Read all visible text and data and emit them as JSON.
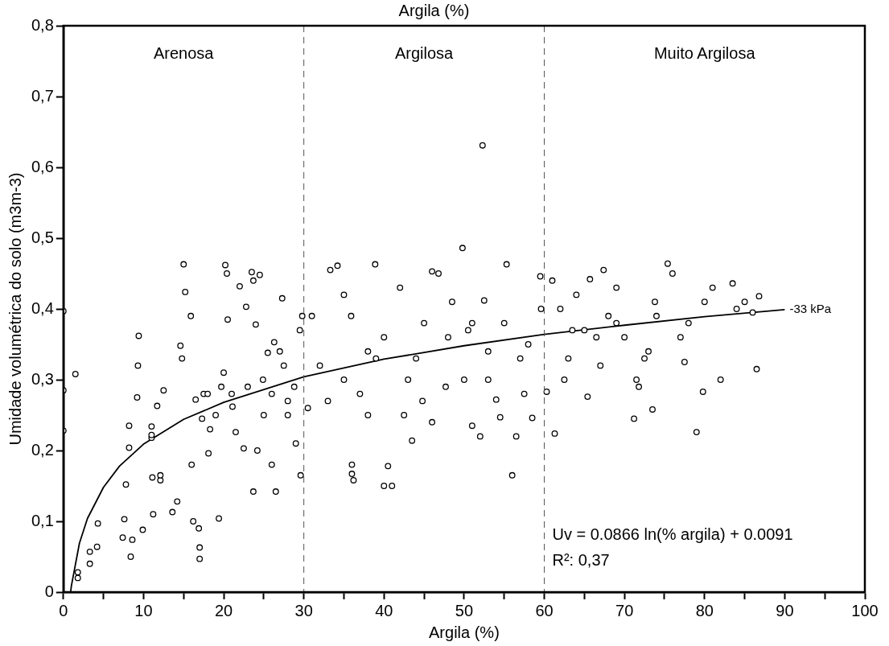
{
  "chart_data": {
    "type": "scatter",
    "title": "Argila (%)",
    "xlabel": "Argila (%)",
    "ylabel": "Umidade volumétrica do solo (m3m-3)",
    "xlim": [
      0,
      100
    ],
    "ylim": [
      0,
      0.8
    ],
    "xticks": [
      0,
      {
        "value": 5,
        "label": null
      },
      10,
      {
        "value": 15,
        "label": null
      },
      20,
      {
        "value": 25,
        "label": null
      },
      30,
      {
        "value": 35,
        "label": null
      },
      40,
      {
        "value": 45,
        "label": null
      },
      50,
      {
        "value": 55,
        "label": null
      },
      60,
      {
        "value": 65,
        "label": null
      },
      70,
      {
        "value": 75,
        "label": null
      },
      80,
      {
        "value": 85,
        "label": null
      },
      90,
      {
        "value": 95,
        "label": null
      },
      100
    ],
    "yticks": [
      0,
      {
        "value": 0.1,
        "label": "0,1"
      },
      {
        "value": 0.2,
        "label": "0,2"
      },
      {
        "value": 0.3,
        "label": "0,3"
      },
      {
        "value": 0.4,
        "label": "0,4"
      },
      {
        "value": 0.5,
        "label": "0,5"
      },
      {
        "value": 0.6,
        "label": "0,6"
      },
      {
        "value": 0.7,
        "label": "0,7"
      },
      {
        "value": 0.8,
        "label": "0,8"
      }
    ],
    "grid": false,
    "legend": false,
    "marker": "circle",
    "ref_lines": [
      {
        "axis": "x",
        "value": 30,
        "color": "#555555",
        "line_style": "dashed"
      },
      {
        "axis": "x",
        "value": 60,
        "color": "#555555",
        "line_style": "dashed"
      }
    ],
    "annotations": [
      "Arenosa",
      "Argilosa",
      "Muito Argilosa",
      "Uv = 0.0866 ln(% argila) + 0.0091",
      "R²: 0,37"
    ],
    "series": [
      {
        "type": "scatter",
        "color": "#000000",
        "x": [
          0,
          0,
          0,
          1.5,
          1.8,
          1.8,
          3.3,
          3.3,
          4.2,
          4.3,
          7.4,
          7.6,
          8.4,
          8.6,
          9.4,
          9.3,
          9.2,
          8.2,
          8.2,
          7.8,
          9.9,
          11,
          11,
          11,
          11.1,
          11.2,
          11.7,
          12.1,
          12.1,
          13.6,
          14.2,
          14.6,
          15,
          15.2,
          15.9,
          14.8,
          16,
          16.2,
          16.9,
          17,
          17,
          16.5,
          17.5,
          17.3,
          18.1,
          18.3,
          19.4,
          19.7,
          20.2,
          20.4,
          20.5,
          21.1,
          21.5,
          22,
          22.8,
          23.5,
          23.7,
          24,
          24.5,
          23,
          22.5,
          24.2,
          23.7,
          24.9,
          25.5,
          26.3,
          26,
          26.5,
          27.3,
          27,
          27.5,
          28,
          28.8,
          29,
          29.5,
          29.8,
          29.6,
          18,
          19,
          20,
          21,
          25,
          26,
          28,
          12.5,
          31,
          30.5,
          32,
          33.3,
          34.2,
          35,
          35.9,
          36,
          36.2,
          36,
          38.9,
          37,
          38,
          38,
          39,
          40,
          40.5,
          41,
          42,
          42.5,
          43,
          43.5,
          44.8,
          45,
          46,
          46.8,
          47.7,
          48,
          48.5,
          49.8,
          50,
          50.5,
          51,
          51,
          52,
          52.3,
          52.5,
          53,
          54,
          54.5,
          55.3,
          56,
          56.5,
          57.5,
          58,
          59.5,
          59.6,
          58.5,
          33,
          35,
          44,
          46,
          53,
          55,
          57,
          40,
          60.3,
          61,
          61.3,
          62,
          62.5,
          63,
          64,
          65,
          65.4,
          65.7,
          66.5,
          67.4,
          67,
          68,
          69,
          70,
          71.2,
          71.5,
          71.8,
          72.5,
          73,
          73.5,
          73.8,
          74,
          75.4,
          76,
          77.5,
          78,
          79,
          79.8,
          80,
          81,
          82,
          83.5,
          85,
          86,
          86.5,
          86.8,
          77,
          69,
          63.5,
          84
        ],
        "values": [
          0.397,
          0.285,
          0.228,
          0.308,
          0.028,
          0.02,
          0.057,
          0.04,
          0.064,
          0.097,
          0.077,
          0.103,
          0.05,
          0.074,
          0.362,
          0.32,
          0.275,
          0.235,
          0.204,
          0.152,
          0.088,
          0.218,
          0.234,
          0.222,
          0.162,
          0.11,
          0.263,
          0.158,
          0.165,
          0.113,
          0.128,
          0.348,
          0.463,
          0.424,
          0.39,
          0.33,
          0.18,
          0.1,
          0.09,
          0.063,
          0.047,
          0.272,
          0.28,
          0.245,
          0.196,
          0.23,
          0.104,
          0.29,
          0.462,
          0.45,
          0.385,
          0.262,
          0.226,
          0.432,
          0.403,
          0.452,
          0.44,
          0.378,
          0.448,
          0.29,
          0.203,
          0.2,
          0.142,
          0.3,
          0.338,
          0.353,
          0.18,
          0.142,
          0.415,
          0.34,
          0.32,
          0.27,
          0.29,
          0.21,
          0.37,
          0.39,
          0.165,
          0.28,
          0.25,
          0.31,
          0.28,
          0.25,
          0.28,
          0.25,
          0.285,
          0.39,
          0.26,
          0.32,
          0.455,
          0.461,
          0.42,
          0.39,
          0.18,
          0.158,
          0.167,
          0.463,
          0.28,
          0.34,
          0.25,
          0.33,
          0.15,
          0.178,
          0.15,
          0.43,
          0.25,
          0.3,
          0.214,
          0.27,
          0.38,
          0.453,
          0.45,
          0.29,
          0.36,
          0.41,
          0.486,
          0.3,
          0.37,
          0.38,
          0.235,
          0.22,
          0.631,
          0.412,
          0.34,
          0.272,
          0.247,
          0.463,
          0.165,
          0.22,
          0.28,
          0.35,
          0.446,
          0.4,
          0.246,
          0.27,
          0.3,
          0.33,
          0.24,
          0.3,
          0.38,
          0.33,
          0.36,
          0.283,
          0.44,
          0.224,
          0.4,
          0.3,
          0.33,
          0.42,
          0.37,
          0.276,
          0.442,
          0.36,
          0.455,
          0.32,
          0.39,
          0.43,
          0.36,
          0.245,
          0.3,
          0.29,
          0.33,
          0.34,
          0.258,
          0.41,
          0.39,
          0.464,
          0.45,
          0.325,
          0.38,
          0.226,
          0.283,
          0.41,
          0.43,
          0.3,
          0.436,
          0.41,
          0.395,
          0.315,
          0.418,
          0.36,
          0.38,
          0.37,
          0.4
        ]
      },
      {
        "type": "line",
        "name": "-33 kPa",
        "color": "#000000",
        "line_style": "solid",
        "marker": "none",
        "x": [
          0.9,
          1,
          2,
          3,
          5,
          7,
          10,
          15,
          20,
          30,
          40,
          50,
          60,
          70,
          80,
          90
        ],
        "values": [
          0,
          0.009,
          0.069,
          0.104,
          0.148,
          0.178,
          0.209,
          0.244,
          0.268,
          0.304,
          0.329,
          0.348,
          0.364,
          0.377,
          0.389,
          0.399
        ]
      }
    ]
  }
}
